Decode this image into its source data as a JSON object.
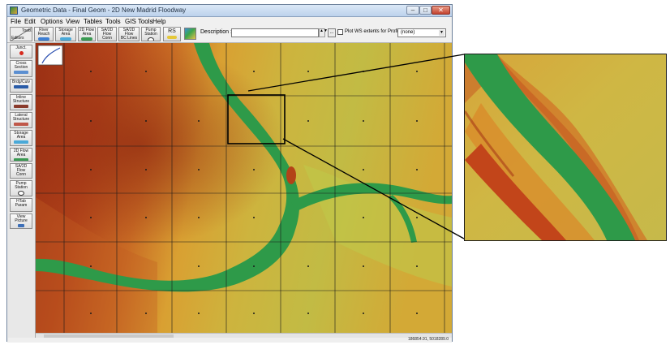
{
  "window": {
    "title": "Geometric Data - Final Geom - 2D New Madrid Floodway",
    "controls": {
      "minimize": "–",
      "maximize": "□",
      "close": "✕"
    }
  },
  "menu": [
    "File",
    "Edit",
    "Options",
    "View",
    "Tables",
    "Tools",
    "GIS Tools",
    "Help"
  ],
  "toolbar": {
    "editors_tools": "Tools",
    "editors_label": "Editors",
    "buttons": [
      {
        "label": "River\nReach",
        "icon": "river-reach-icon"
      },
      {
        "label": "Storage\nArea",
        "icon": "storage-area-icon"
      },
      {
        "label": "2D Flow\nArea",
        "icon": "2d-flow-area-icon"
      },
      {
        "label": "SA/2D Flow\nConn",
        "icon": "sa-2d-connection-icon"
      },
      {
        "label": "SA/2D Flow\nBC Lines",
        "icon": "bc-lines-icon"
      },
      {
        "label": "Pump\nStation",
        "icon": "pump-station-icon"
      },
      {
        "label": "RS",
        "icon": "rs-icon"
      }
    ],
    "description_label": "Description :",
    "description_value": "",
    "ellipsis": "...",
    "plot_ws_label": "Plot WS extents for Profile:",
    "profile_value": "(none)",
    "select_arrow": "▼",
    "spin_arrows": "▲▼"
  },
  "side_buttons": [
    {
      "label": "Junct."
    },
    {
      "label": "Cross\nSection"
    },
    {
      "label": "Brdg/Culv"
    },
    {
      "label": "Inline\nStructure"
    },
    {
      "label": "Lateral\nStructure"
    },
    {
      "label": "Storage\nArea"
    },
    {
      "label": "2D Flow\nArea"
    },
    {
      "label": "SA/2D Flow\nConn"
    },
    {
      "label": "Pump\nStation"
    },
    {
      "label": "HTab\nParam"
    },
    {
      "label": "View\nPicture"
    }
  ],
  "status": {
    "coordinates": "186854.91, 5018289.0"
  },
  "colors": {
    "river_green": "#2e9a49",
    "terrain_high": "#a83a18",
    "terrain_mid": "#d9a032",
    "terrain_low": "#b9c452",
    "grid_line": "#1a1a1a",
    "zoom_box": "#000000"
  }
}
